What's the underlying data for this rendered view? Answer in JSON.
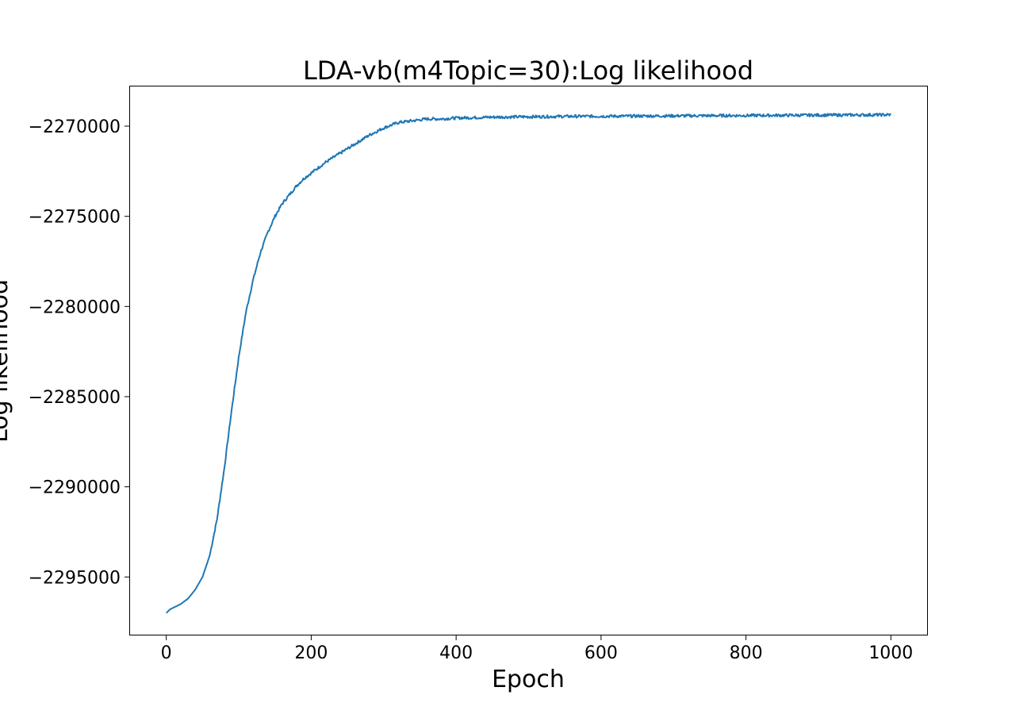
{
  "chart_data": {
    "type": "line",
    "title": "LDA-vb(m4Topic=30):Log likelihood",
    "xlabel": "Epoch",
    "ylabel": "Log likelihood",
    "xlim": [
      -50,
      1050
    ],
    "ylim": [
      -2298200,
      -2267800
    ],
    "xticks": [
      0,
      200,
      400,
      600,
      800,
      1000
    ],
    "yticks": [
      -2295000,
      -2290000,
      -2285000,
      -2280000,
      -2275000,
      -2270000
    ],
    "xtick_labels": [
      "0",
      "200",
      "400",
      "600",
      "800",
      "1000"
    ],
    "ytick_labels": [
      "−2295000",
      "−2290000",
      "−2285000",
      "−2280000",
      "−2275000",
      "−2270000"
    ],
    "grid": false,
    "series": [
      {
        "color": "#1f77b4",
        "x": [
          0,
          5,
          10,
          20,
          30,
          40,
          50,
          60,
          70,
          80,
          90,
          100,
          110,
          120,
          130,
          140,
          150,
          160,
          170,
          180,
          190,
          200,
          220,
          240,
          260,
          280,
          300,
          320,
          340,
          360,
          380,
          400,
          450,
          500,
          550,
          600,
          650,
          700,
          750,
          800,
          850,
          900,
          950,
          1000
        ],
        "y": [
          -2297000,
          -2296800,
          -2296700,
          -2296500,
          -2296200,
          -2295700,
          -2295000,
          -2293800,
          -2291800,
          -2289000,
          -2285800,
          -2282800,
          -2280300,
          -2278500,
          -2277000,
          -2275900,
          -2275000,
          -2274300,
          -2273800,
          -2273300,
          -2272900,
          -2272600,
          -2272000,
          -2271500,
          -2271000,
          -2270500,
          -2270100,
          -2269800,
          -2269700,
          -2269600,
          -2269600,
          -2269550,
          -2269500,
          -2269480,
          -2269460,
          -2269450,
          -2269440,
          -2269430,
          -2269420,
          -2269410,
          -2269400,
          -2269390,
          -2269380,
          -2269370
        ]
      }
    ]
  }
}
